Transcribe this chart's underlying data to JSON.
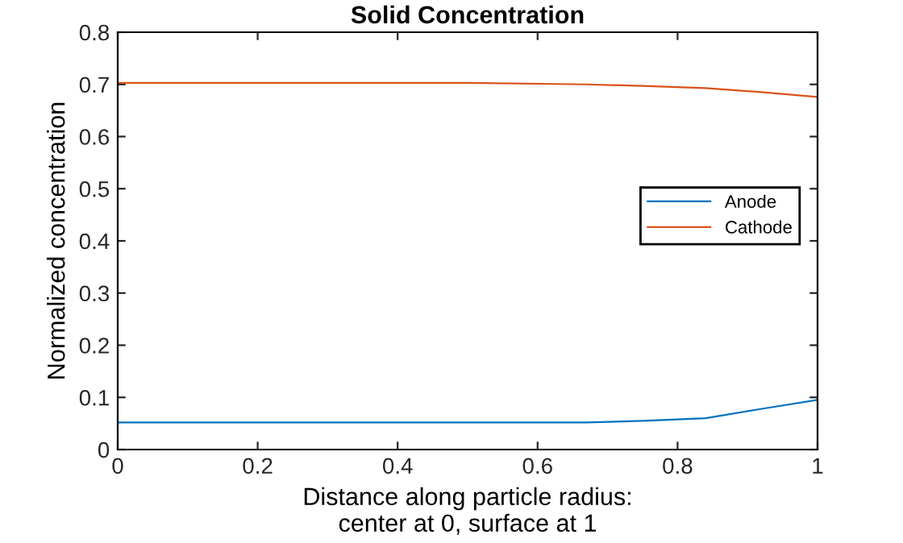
{
  "chart_data": {
    "type": "line",
    "title": "Solid Concentration",
    "xlabel": "Distance along particle radius:\ncenter at 0, surface at 1",
    "ylabel": "Normalized concentration",
    "series": [
      {
        "name": "Anode",
        "color": "#0072bd",
        "x": [
          0,
          0.17,
          0.33,
          0.5,
          0.67,
          0.75,
          0.84,
          0.92,
          1.0
        ],
        "values": [
          0.052,
          0.052,
          0.052,
          0.052,
          0.052,
          0.055,
          0.06,
          0.078,
          0.095
        ]
      },
      {
        "name": "Cathode",
        "color": "#d95319",
        "x": [
          0,
          0.17,
          0.33,
          0.5,
          0.67,
          0.75,
          0.84,
          0.92,
          1.0
        ],
        "values": [
          0.703,
          0.703,
          0.703,
          0.703,
          0.7,
          0.697,
          0.693,
          0.685,
          0.676
        ]
      }
    ],
    "xlim": [
      0,
      1
    ],
    "xticks": [
      0,
      0.2,
      0.4,
      0.6,
      0.8,
      1
    ],
    "ylim": [
      0,
      0.8
    ],
    "yticks": [
      0,
      0.1,
      0.2,
      0.3,
      0.4,
      0.5,
      0.6,
      0.7,
      0.8
    ],
    "grid": false,
    "legend": "right",
    "marker": "none",
    "line_style": "solid"
  }
}
